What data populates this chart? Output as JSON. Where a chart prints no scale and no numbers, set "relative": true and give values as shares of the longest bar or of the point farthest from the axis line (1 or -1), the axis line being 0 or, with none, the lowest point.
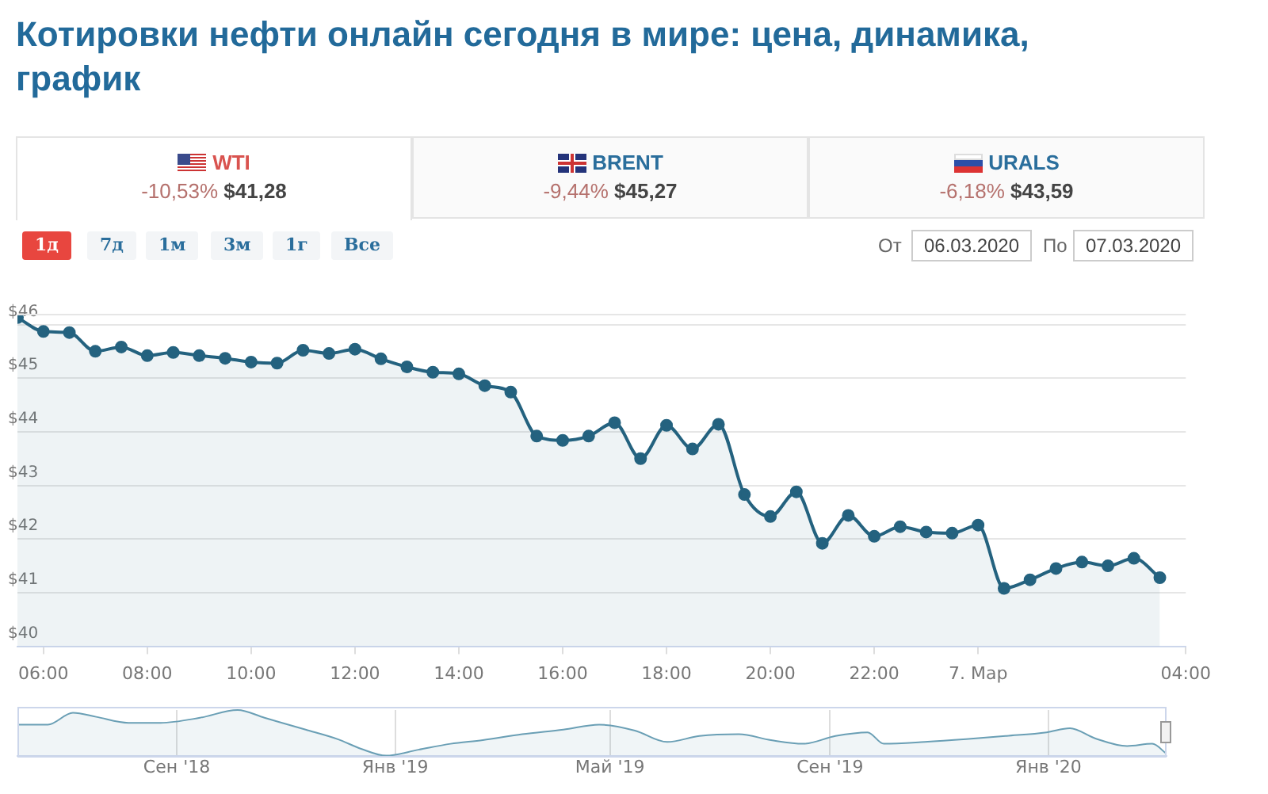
{
  "chart_data": [
    {
      "type": "area",
      "title": "Котировки нефти онлайн сегодня в мире: цена, динамика, график",
      "annotations": [
        "WTI",
        "-10,53%",
        "$41,28",
        "BRENT",
        "-9,44%",
        "$45,27",
        "URALS",
        "-6,18%",
        "$43,59",
        "1д",
        "7д",
        "1м",
        "3м",
        "1г",
        "Все",
        "От",
        "06.03.2020",
        "По",
        "07.03.2020"
      ],
      "x": [
        "2020-03-06T05:30",
        "2020-03-06T06:00",
        "2020-03-06T06:30",
        "2020-03-06T07:00",
        "2020-03-06T07:30",
        "2020-03-06T08:00",
        "2020-03-06T08:30",
        "2020-03-06T09:00",
        "2020-03-06T09:30",
        "2020-03-06T10:00",
        "2020-03-06T10:30",
        "2020-03-06T11:00",
        "2020-03-06T11:30",
        "2020-03-06T12:00",
        "2020-03-06T12:30",
        "2020-03-06T13:00",
        "2020-03-06T13:30",
        "2020-03-06T14:00",
        "2020-03-06T14:30",
        "2020-03-06T15:00",
        "2020-03-06T15:30",
        "2020-03-06T16:00",
        "2020-03-06T16:30",
        "2020-03-06T17:00",
        "2020-03-06T17:30",
        "2020-03-06T18:00",
        "2020-03-06T18:30",
        "2020-03-06T19:00",
        "2020-03-06T19:30",
        "2020-03-06T20:00",
        "2020-03-06T20:30",
        "2020-03-06T21:00",
        "2020-03-06T21:30",
        "2020-03-06T22:00",
        "2020-03-06T22:30",
        "2020-03-06T23:00",
        "2020-03-06T23:30",
        "2020-03-07T00:00",
        "2020-03-07T00:30",
        "2020-03-07T01:00",
        "2020-03-07T01:30",
        "2020-03-07T02:00",
        "2020-03-07T02:30",
        "2020-03-07T03:00",
        "2020-03-07T03:30"
      ],
      "series": [
        {
          "color": "#24627f",
          "values": [
            46.13,
            45.87,
            45.85,
            45.5,
            45.58,
            45.42,
            45.48,
            45.42,
            45.37,
            45.3,
            45.28,
            45.52,
            45.46,
            45.54,
            45.36,
            45.21,
            45.11,
            45.08,
            44.86,
            44.74,
            43.92,
            43.84,
            43.92,
            44.17,
            43.5,
            44.12,
            43.68,
            44.14,
            42.83,
            42.42,
            42.88,
            41.92,
            42.44,
            42.05,
            42.23,
            42.13,
            42.11,
            42.26,
            41.08,
            41.24,
            41.45,
            41.57,
            41.5,
            41.64,
            41.28
          ]
        }
      ],
      "xlim": [
        "2020-03-06T05:30",
        "2020-03-07T04:00"
      ],
      "xticks": [
        {
          "value": "2020-03-06T06:00",
          "label": "06:00"
        },
        {
          "value": "2020-03-06T08:00",
          "label": "08:00"
        },
        {
          "value": "2020-03-06T10:00",
          "label": "10:00"
        },
        {
          "value": "2020-03-06T12:00",
          "label": "12:00"
        },
        {
          "value": "2020-03-06T14:00",
          "label": "14:00"
        },
        {
          "value": "2020-03-06T16:00",
          "label": "16:00"
        },
        {
          "value": "2020-03-06T18:00",
          "label": "18:00"
        },
        {
          "value": "2020-03-06T20:00",
          "label": "20:00"
        },
        {
          "value": "2020-03-06T22:00",
          "label": "22:00"
        },
        {
          "value": "2020-03-07T00:00",
          "label": "7. Мар"
        },
        {
          "value": "2020-03-07T04:00",
          "label": "04:00"
        }
      ],
      "ylim": [
        40,
        46.2
      ],
      "yticks": [
        {
          "value": 40,
          "label": "$40"
        },
        {
          "value": 41,
          "label": "$41"
        },
        {
          "value": 42,
          "label": "$42"
        },
        {
          "value": 43,
          "label": "$43"
        },
        {
          "value": 44,
          "label": "$44"
        },
        {
          "value": 45,
          "label": "$45"
        },
        {
          "value": 46,
          "label": "$46"
        }
      ],
      "grid": "y",
      "legend": false,
      "marker": "circle"
    },
    {
      "type": "area",
      "relative": true,
      "grid": "x",
      "legend": false,
      "marker": "none",
      "x": [
        "2018-06-04",
        "2018-06-21",
        "2018-07-05",
        "2018-07-18",
        "2018-08-05",
        "2018-08-23",
        "2018-09-14",
        "2018-10-05",
        "2018-10-20",
        "2018-11-12",
        "2018-11-30",
        "2018-12-13",
        "2018-12-27",
        "2019-01-14",
        "2019-02-01",
        "2019-02-19",
        "2019-03-13",
        "2019-04-05",
        "2019-04-25",
        "2019-05-15",
        "2019-06-02",
        "2019-06-20",
        "2019-07-12",
        "2019-07-30",
        "2019-08-17",
        "2019-09-04",
        "2019-09-22",
        "2019-10-01",
        "2019-10-24",
        "2019-11-16",
        "2019-12-08",
        "2019-12-31",
        "2020-01-13",
        "2020-01-27",
        "2020-02-14",
        "2020-02-28",
        "2020-03-07"
      ],
      "series": [
        {
          "color": "#6a9fb5",
          "values": [
            0.68,
            0.68,
            0.94,
            0.85,
            0.72,
            0.72,
            0.83,
            1,
            0.83,
            0.57,
            0.36,
            0.15,
            0,
            0.13,
            0.26,
            0.34,
            0.47,
            0.57,
            0.68,
            0.55,
            0.3,
            0.43,
            0.47,
            0.34,
            0.26,
            0.43,
            0.51,
            0.26,
            0.3,
            0.36,
            0.43,
            0.51,
            0.6,
            0.38,
            0.21,
            0.26,
            0.04
          ]
        }
      ],
      "xlim": [
        "2018-06-04",
        "2020-03-07"
      ],
      "xticks": [
        {
          "value": "2018-09-01",
          "label": "Сен '18"
        },
        {
          "value": "2019-01-01",
          "label": "Янв '19"
        },
        {
          "value": "2019-05-01",
          "label": "Май '19"
        },
        {
          "value": "2019-09-01",
          "label": "Сен '19"
        },
        {
          "value": "2020-01-01",
          "label": "Янв '20"
        }
      ],
      "tick_labels": "x"
    }
  ]
}
